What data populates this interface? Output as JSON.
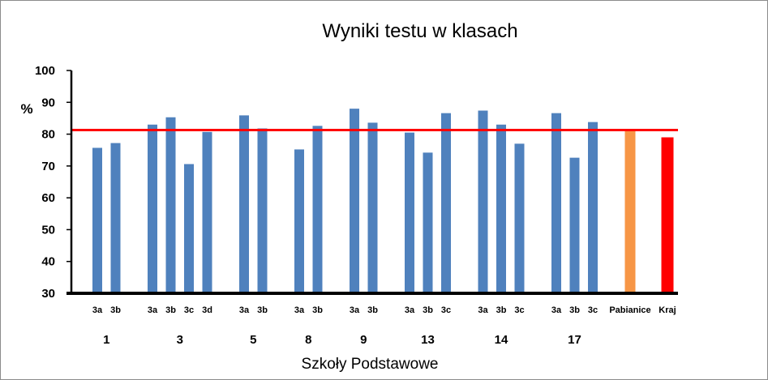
{
  "chart_data": {
    "type": "bar",
    "title": "Wyniki testu w klasach",
    "xlabel": "Szkoły Podstawowe",
    "ylabel": "%",
    "ylim": [
      30,
      100
    ],
    "yticks": [
      "30",
      "40",
      "50",
      "60",
      "70",
      "80",
      "90",
      "100"
    ],
    "grid": false,
    "legend": "none",
    "colors": {
      "classes": "#4f81bd",
      "pabianice": "#f79646",
      "kraj": "#ff0000",
      "reference_line": "#ff0000"
    },
    "reference_line": {
      "value": 79
    },
    "groups": [
      {
        "name": "1",
        "bars": [
          {
            "label": "3a",
            "value": 75.7
          },
          {
            "label": "3b",
            "value": 77.2
          }
        ]
      },
      {
        "name": "3",
        "bars": [
          {
            "label": "3a",
            "value": 83.0
          },
          {
            "label": "3b",
            "value": 85.3
          },
          {
            "label": "3c",
            "value": 70.6
          },
          {
            "label": "3d",
            "value": 80.7
          }
        ]
      },
      {
        "name": "5",
        "bars": [
          {
            "label": "3a",
            "value": 85.9
          },
          {
            "label": "3b",
            "value": 81.8
          }
        ]
      },
      {
        "name": "8",
        "bars": [
          {
            "label": "3a",
            "value": 75.2
          },
          {
            "label": "3b",
            "value": 82.6
          }
        ]
      },
      {
        "name": "9",
        "bars": [
          {
            "label": "3a",
            "value": 88.0
          },
          {
            "label": "3b",
            "value": 83.6
          }
        ]
      },
      {
        "name": "13",
        "bars": [
          {
            "label": "3a",
            "value": 80.5
          },
          {
            "label": "3b",
            "value": 74.2
          },
          {
            "label": "3c",
            "value": 86.6
          }
        ]
      },
      {
        "name": "14",
        "bars": [
          {
            "label": "3a",
            "value": 87.4
          },
          {
            "label": "3b",
            "value": 83.0
          },
          {
            "label": "3c",
            "value": 77.0
          }
        ]
      },
      {
        "name": "17",
        "bars": [
          {
            "label": "3a",
            "value": 86.6
          },
          {
            "label": "3b",
            "value": 72.6
          },
          {
            "label": "3c",
            "value": 83.8
          }
        ]
      }
    ],
    "summary_bars": [
      {
        "label": "Pabianice",
        "value": 81.2
      },
      {
        "label": "Kraj",
        "value": 79.0
      }
    ]
  }
}
